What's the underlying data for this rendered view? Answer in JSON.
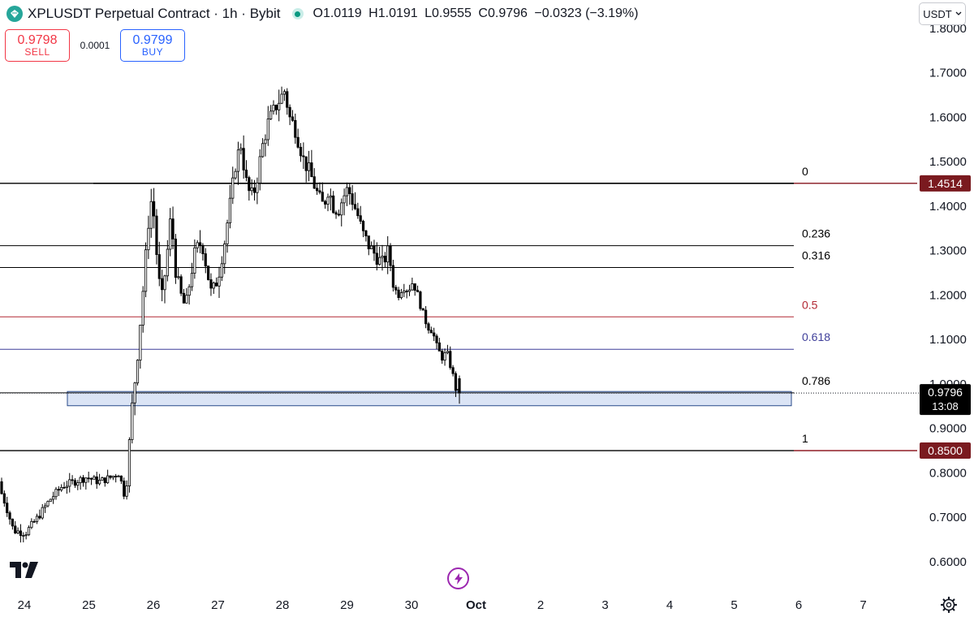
{
  "header": {
    "title": "XPLUSDT Perpetual Contract · 1h · Bybit",
    "ohlc": {
      "o_label": "O",
      "o": "1.0119",
      "h_label": "H",
      "h": "1.0191",
      "l_label": "L",
      "l": "0.9555",
      "c_label": "C",
      "c": "0.9796",
      "change": "−0.0323 (−3.19%)"
    }
  },
  "currency": {
    "label": "USDT",
    "icon": "chevron-down-icon"
  },
  "trade": {
    "sell_price": "0.9798",
    "sell_label": "SELL",
    "spread": "0.0001",
    "buy_price": "0.9799",
    "buy_label": "BUY"
  },
  "colors": {
    "up": "#ffffff",
    "down": "#000000",
    "fib_red": "#b22833",
    "fib_purple": "#3f3f9a",
    "zone_fill": "#dbe4f5",
    "zone_stroke": "#2a4a8a",
    "badge_dark": "#7a1a1f"
  },
  "chart_data": {
    "type": "candlestick",
    "x_ticks": [
      "24",
      "25",
      "26",
      "27",
      "28",
      "29",
      "30",
      "Oct",
      "2",
      "3",
      "4",
      "5",
      "6",
      "7"
    ],
    "y_ticks": [
      "1.8000",
      "1.7000",
      "1.6000",
      "1.5000",
      "1.4000",
      "1.3000",
      "1.2000",
      "1.1000",
      "1.0000",
      "0.9000",
      "0.8000",
      "0.7000",
      "0.6000"
    ],
    "ylim": [
      0.55,
      1.84
    ],
    "price_range": {
      "low": 0.65,
      "high": 1.69,
      "last": 0.9796
    },
    "fib_levels": [
      {
        "label": "0",
        "price": 1.4514,
        "color": "#000000"
      },
      {
        "label": "0.236",
        "price": 1.311,
        "color": "#000000"
      },
      {
        "label": "0.316",
        "price": 1.262,
        "color": "#000000"
      },
      {
        "label": "0.5",
        "price": 1.151,
        "color": "#b22833"
      },
      {
        "label": "0.618",
        "price": 1.078,
        "color": "#3f3f9a"
      },
      {
        "label": "0.786",
        "price": 0.98,
        "color": "#000000"
      },
      {
        "label": "1",
        "price": 0.85,
        "color": "#000000"
      }
    ],
    "zone": {
      "from": 0.951,
      "to": 0.983
    },
    "price_badges": [
      {
        "value": "1.4514",
        "price": 1.4514
      },
      {
        "value": "0.8500",
        "price": 0.85
      }
    ],
    "last_price": {
      "value": "0.9796",
      "countdown": "13:08",
      "price": 0.9796
    }
  }
}
